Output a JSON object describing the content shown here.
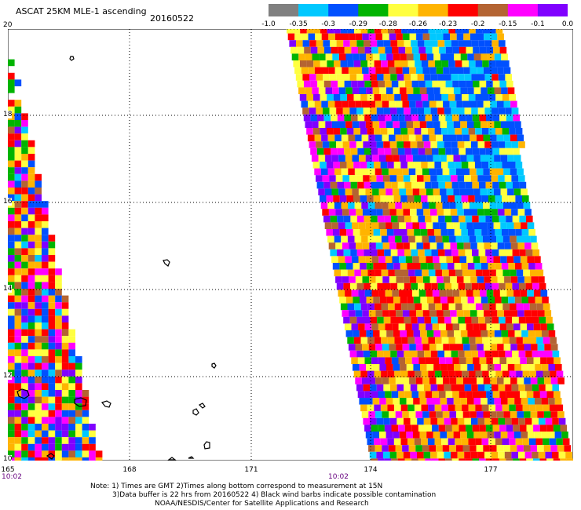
{
  "header": {
    "title": "ASCAT 25KM MLE-1 ascending",
    "date": "20160522"
  },
  "colorbar": {
    "colors": [
      "#808080",
      "#00c8ff",
      "#0050ff",
      "#00b400",
      "#ffff40",
      "#ffb400",
      "#ff0000",
      "#b46432",
      "#ff00ff",
      "#8000ff"
    ],
    "labels": [
      "-1.0",
      "-0.35",
      "-0.3",
      "-0.29",
      "-0.28",
      "-0.26",
      "-0.23",
      "-0.2",
      "-0.15",
      "-0.1",
      "0.0"
    ]
  },
  "map": {
    "lat_labels": [
      "20",
      "18",
      "16",
      "14",
      "12",
      "10"
    ],
    "lon_labels": [
      "165",
      "168",
      "171",
      "174",
      "177"
    ],
    "pass_times": [
      "10:02",
      "10:02"
    ]
  },
  "notes": [
    "Note: 1) Times are GMT 2)Times along bottom correspond to measurement at 15N",
    "3)Data buffer is 22 hrs from 20160522 4) Black wind barbs indicate possible contamination",
    "NOAA/NESDIS/Center for Satellite Applications and Research"
  ]
}
